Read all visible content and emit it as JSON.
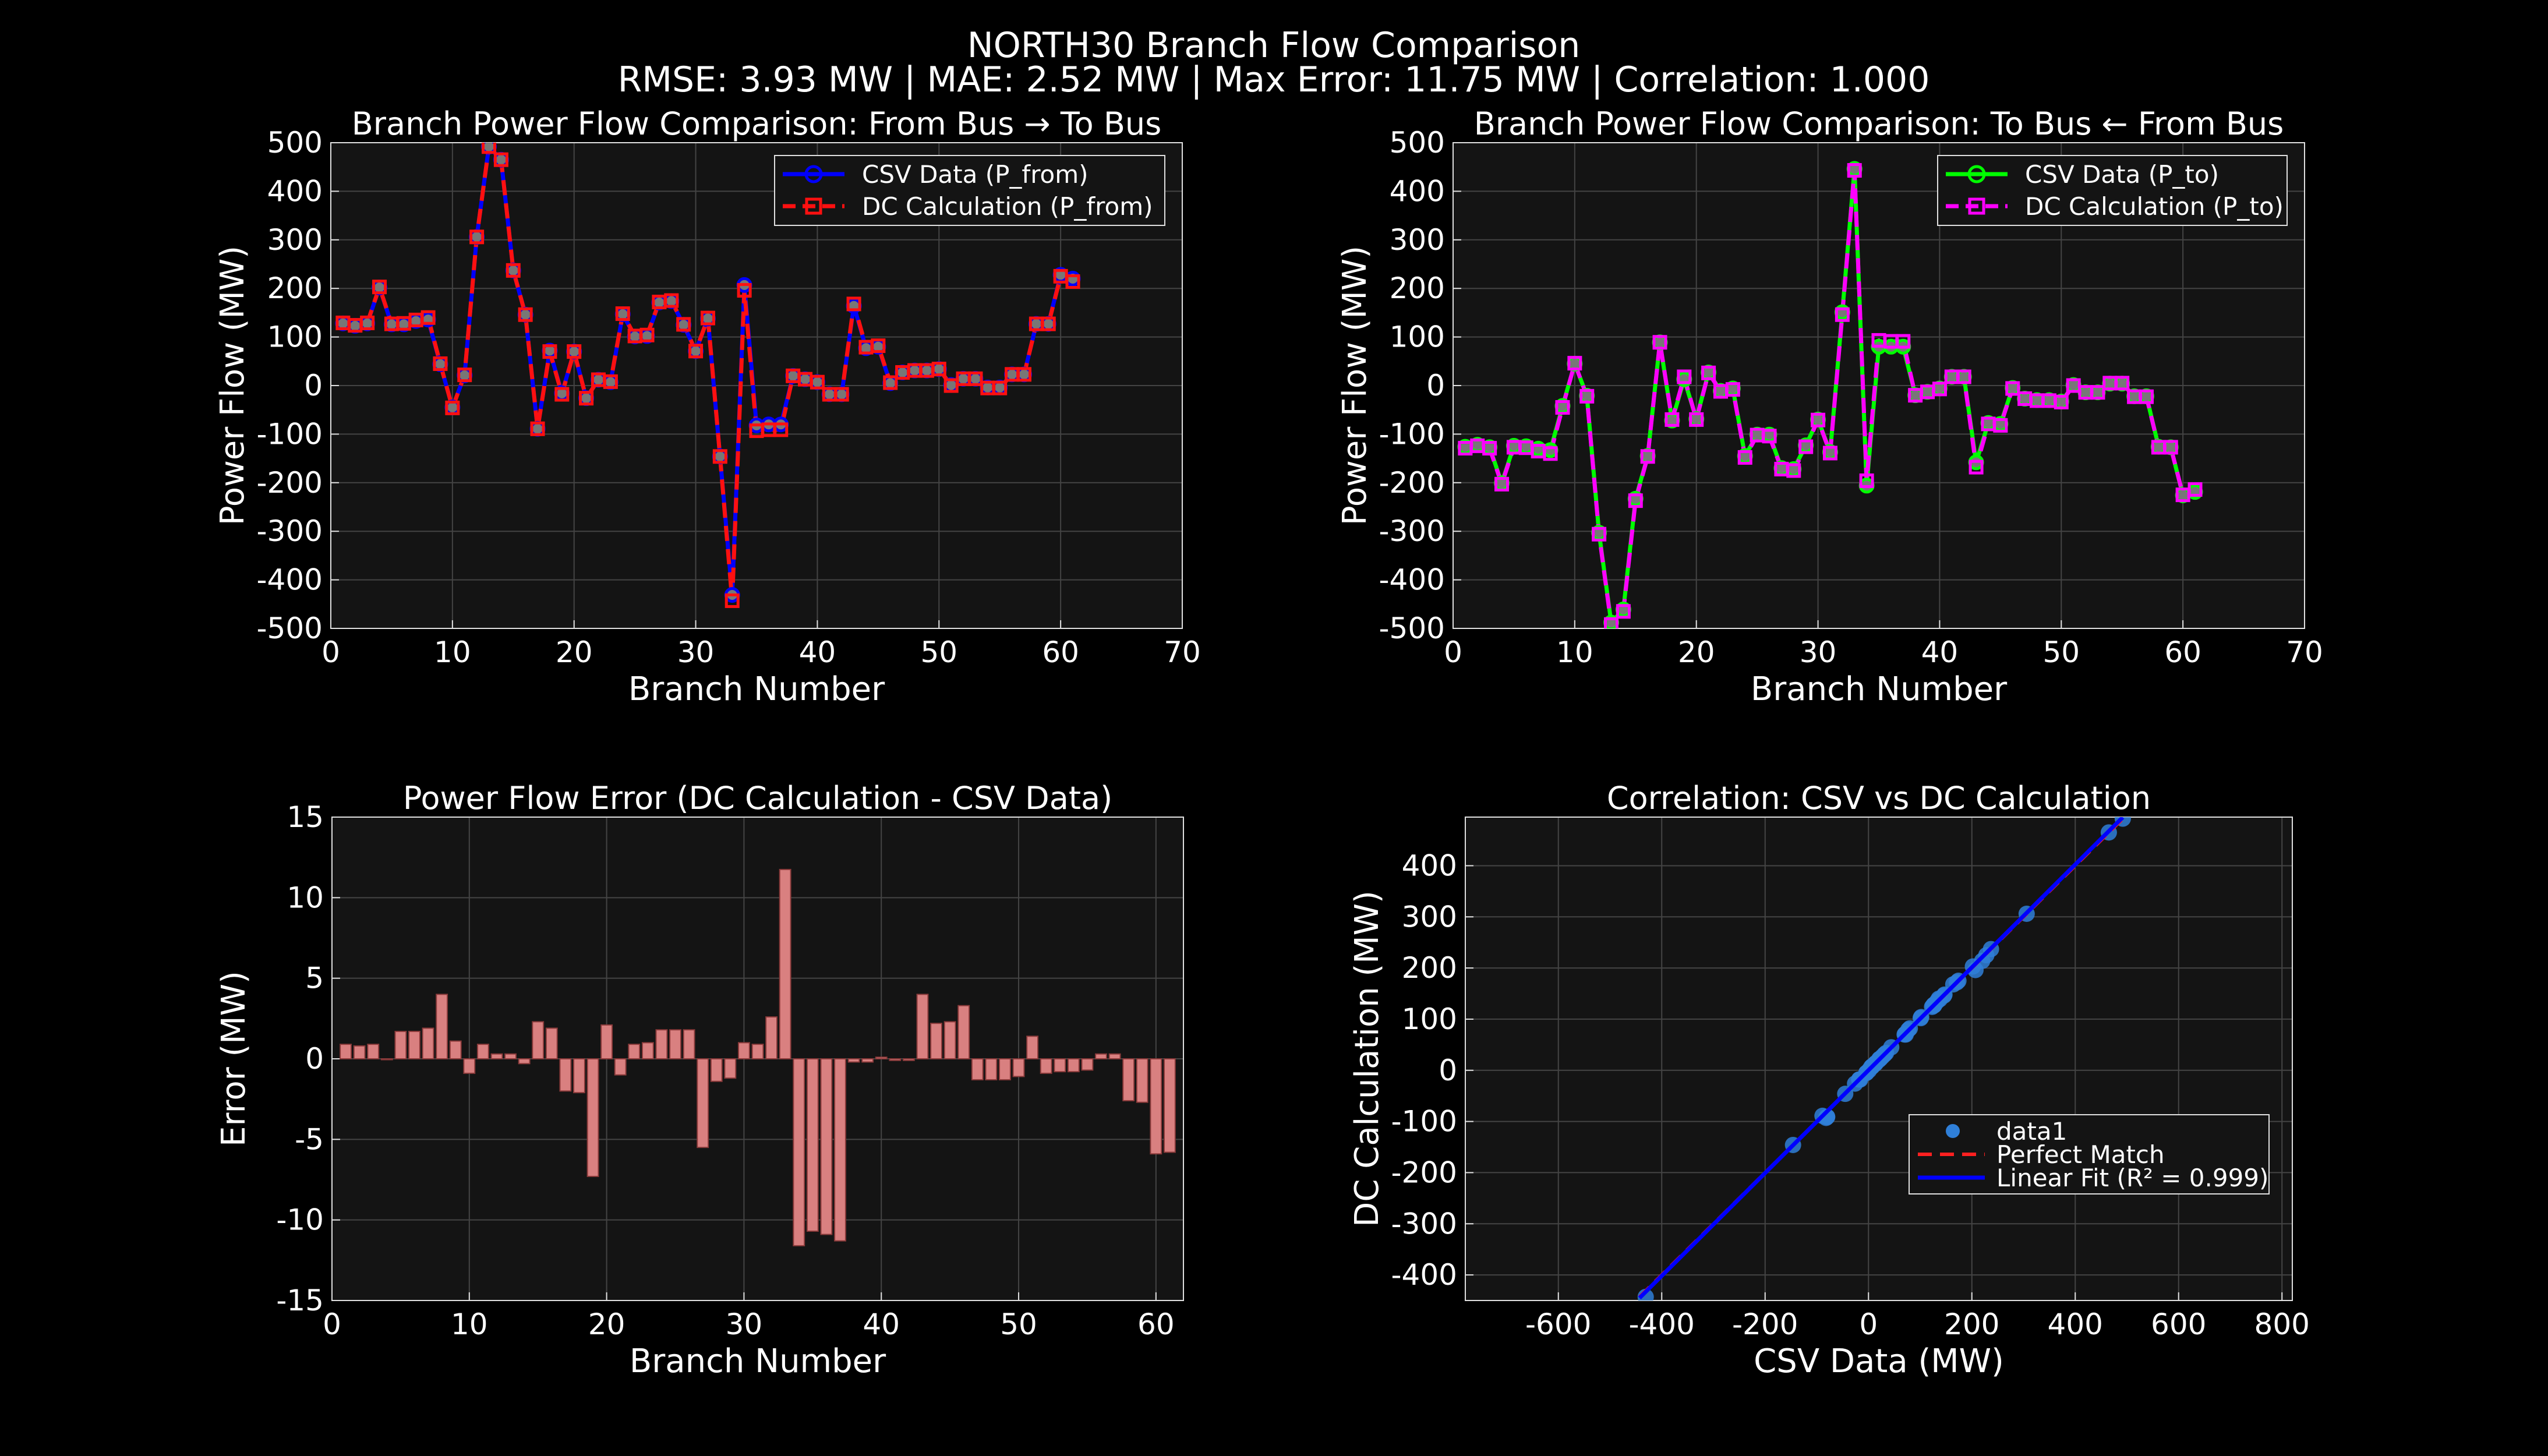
{
  "figure": {
    "title": "NORTH30 Branch Flow Comparison",
    "subtitle": "RMSE: 3.93 MW | MAE: 2.52 MW | Max Error: 11.75 MW | Correlation: 1.000"
  },
  "colors": {
    "background": "#000000",
    "axes_background": "#141414",
    "grid": "#444444",
    "csv_from": "#0000ff",
    "dc_from": "#ff1010",
    "csv_to": "#00ff00",
    "dc_to": "#ff00ff",
    "error_bar_fill": "#d98080",
    "error_bar_edge": "#8a3a3a",
    "scatter_point": "#2f7fd8",
    "linear_fit": "#0000ff",
    "perfect_match": "#ff2020"
  },
  "chart_data": [
    {
      "id": "from",
      "type": "line",
      "title": "Branch Power Flow Comparison: From Bus → To Bus",
      "xlabel": "Branch Number",
      "ylabel": "Power Flow (MW)",
      "xlim": [
        0,
        70
      ],
      "ylim": [
        -500,
        500
      ],
      "xticks": [
        0,
        10,
        20,
        30,
        40,
        50,
        60,
        70
      ],
      "yticks": [
        -500,
        -400,
        -300,
        -200,
        -100,
        0,
        100,
        200,
        300,
        400,
        500
      ],
      "grid": true,
      "legend_position": "top-right",
      "x": [
        1,
        2,
        3,
        4,
        5,
        6,
        7,
        8,
        9,
        10,
        11,
        12,
        13,
        14,
        15,
        16,
        17,
        18,
        19,
        20,
        21,
        22,
        23,
        24,
        25,
        26,
        27,
        28,
        29,
        30,
        31,
        32,
        33,
        34,
        35,
        36,
        37,
        38,
        39,
        40,
        41,
        42,
        43,
        44,
        45,
        46,
        47,
        48,
        49,
        50,
        51,
        52,
        53,
        54,
        55,
        56,
        57,
        58,
        59,
        60,
        61
      ],
      "series": [
        {
          "name": "CSV Data (P_from)",
          "color": "#0000ff",
          "marker": "circle",
          "dash": "solid",
          "values": [
            128,
            123,
            128,
            202,
            126,
            126,
            133,
            136,
            44,
            -45,
            21,
            306,
            492,
            465,
            237,
            146,
            -89,
            72,
            -16,
            70,
            -26,
            12,
            7,
            147,
            101,
            102,
            171,
            174,
            125,
            71,
            138,
            -146,
            -431,
            207,
            -82,
            -80,
            -80,
            20,
            13,
            7,
            -18,
            -18,
            164,
            77,
            80,
            5,
            27,
            31,
            31,
            34,
            1,
            14,
            14,
            -4,
            -4,
            23,
            23,
            127,
            127,
            228,
            220
          ]
        },
        {
          "name": "DC Calculation (P_from)",
          "color": "#ff1010",
          "marker": "square",
          "dash": "dashed",
          "values": [
            129,
            124,
            129,
            203,
            127,
            128,
            135,
            140,
            45,
            -46,
            22,
            306,
            492,
            465,
            237,
            146,
            -89,
            70,
            -18,
            70,
            -26,
            12,
            8,
            148,
            102,
            104,
            172,
            175,
            126,
            71,
            139,
            -146,
            -443,
            196,
            -93,
            -91,
            -91,
            20,
            13,
            7,
            -18,
            -18,
            168,
            79,
            82,
            6,
            27,
            31,
            31,
            34,
            0,
            14,
            14,
            -5,
            -5,
            23,
            23,
            127,
            127,
            225,
            214
          ]
        }
      ]
    },
    {
      "id": "to",
      "type": "line",
      "title": "Branch Power Flow Comparison: To Bus ← From Bus",
      "xlabel": "Branch Number",
      "ylabel": "Power Flow (MW)",
      "xlim": [
        0,
        70
      ],
      "ylim": [
        -500,
        500
      ],
      "xticks": [
        0,
        10,
        20,
        30,
        40,
        50,
        60,
        70
      ],
      "yticks": [
        -500,
        -400,
        -300,
        -200,
        -100,
        0,
        100,
        200,
        300,
        400,
        500
      ],
      "grid": true,
      "legend_position": "top-right",
      "x": [
        1,
        2,
        3,
        4,
        5,
        6,
        7,
        8,
        9,
        10,
        11,
        12,
        13,
        14,
        15,
        16,
        17,
        18,
        19,
        20,
        21,
        22,
        23,
        24,
        25,
        26,
        27,
        28,
        29,
        30,
        31,
        32,
        33,
        34,
        35,
        36,
        37,
        38,
        39,
        40,
        41,
        42,
        43,
        44,
        45,
        46,
        47,
        48,
        49,
        50,
        51,
        52,
        53,
        54,
        55,
        56,
        57,
        58,
        59,
        60,
        61
      ],
      "series": [
        {
          "name": "CSV Data (P_to)",
          "color": "#00ff00",
          "marker": "circle",
          "dash": "solid",
          "values": [
            -126,
            -122,
            -127,
            -201,
            -124,
            -125,
            -130,
            -133,
            -42,
            45,
            -21,
            -303,
            -488,
            -461,
            -233,
            -145,
            89,
            -72,
            13,
            -69,
            27,
            -11,
            -6,
            -145,
            -101,
            -101,
            -170,
            -172,
            -123,
            -70,
            -137,
            151,
            446,
            -206,
            80,
            80,
            80,
            -20,
            -13,
            -6,
            18,
            18,
            -158,
            -77,
            -79,
            -5,
            -27,
            -30,
            -30,
            -33,
            1,
            -14,
            -14,
            4,
            4,
            -22,
            -22,
            -126,
            -127,
            -226,
            -219
          ]
        },
        {
          "name": "DC Calculation (P_to)",
          "color": "#ff00ff",
          "marker": "square",
          "dash": "dashed",
          "values": [
            -129,
            -124,
            -129,
            -203,
            -127,
            -128,
            -135,
            -140,
            -45,
            46,
            -22,
            -306,
            -492,
            -465,
            -237,
            -146,
            89,
            -70,
            18,
            -70,
            26,
            -12,
            -8,
            -148,
            -102,
            -104,
            -172,
            -175,
            -126,
            -71,
            -139,
            146,
            443,
            -196,
            93,
            91,
            91,
            -20,
            -13,
            -7,
            18,
            18,
            -168,
            -79,
            -82,
            -6,
            -27,
            -31,
            -31,
            -34,
            0,
            -14,
            -14,
            5,
            5,
            -23,
            -23,
            -127,
            -127,
            -225,
            -214
          ]
        }
      ]
    },
    {
      "id": "error",
      "type": "bar",
      "title": "Power Flow Error (DC Calculation - CSV Data)",
      "xlabel": "Branch Number",
      "ylabel": "Error (MW)",
      "xlim": [
        0,
        62
      ],
      "ylim": [
        -15,
        15
      ],
      "xticks": [
        0,
        10,
        20,
        30,
        40,
        50,
        60
      ],
      "yticks": [
        -15,
        -10,
        -5,
        0,
        5,
        10,
        15
      ],
      "grid": true,
      "x": [
        1,
        2,
        3,
        4,
        5,
        6,
        7,
        8,
        9,
        10,
        11,
        12,
        13,
        14,
        15,
        16,
        17,
        18,
        19,
        20,
        21,
        22,
        23,
        24,
        25,
        26,
        27,
        28,
        29,
        30,
        31,
        32,
        33,
        34,
        35,
        36,
        37,
        38,
        39,
        40,
        41,
        42,
        43,
        44,
        45,
        46,
        47,
        48,
        49,
        50,
        51,
        52,
        53,
        54,
        55,
        56,
        57,
        58,
        59,
        60,
        61
      ],
      "values": [
        0.9,
        0.8,
        0.9,
        0.0,
        1.7,
        1.7,
        1.9,
        4.0,
        1.1,
        -0.9,
        0.9,
        0.3,
        0.3,
        -0.3,
        2.3,
        1.9,
        -2.0,
        -2.1,
        -7.3,
        2.1,
        -1.0,
        0.9,
        1.0,
        1.8,
        1.8,
        1.8,
        -5.5,
        -1.4,
        -1.2,
        1.0,
        0.9,
        2.6,
        11.75,
        -11.6,
        -10.7,
        -10.9,
        -11.3,
        -0.2,
        -0.2,
        0.1,
        -0.1,
        -0.1,
        4.0,
        2.2,
        2.3,
        3.3,
        -1.3,
        -1.3,
        -1.3,
        -1.1,
        1.4,
        -0.9,
        -0.8,
        -0.8,
        -0.7,
        0.3,
        0.3,
        -2.6,
        -2.7,
        -5.9,
        -5.8
      ]
    },
    {
      "id": "correlation",
      "type": "scatter",
      "title": "Correlation: CSV vs DC Calculation",
      "xlabel": "CSV Data (MW)",
      "ylabel": "DC Calculation (MW)",
      "xlim": [
        -780,
        820
      ],
      "ylim": [
        -450,
        495
      ],
      "xticks": [
        -600,
        -400,
        -200,
        0,
        200,
        400,
        600,
        800
      ],
      "yticks": [
        -400,
        -300,
        -200,
        -100,
        0,
        100,
        200,
        300,
        400
      ],
      "grid": true,
      "legend_position": "bottom-right",
      "legend": [
        "data1",
        "Perfect Match",
        "Linear Fit (R² = 0.999)"
      ],
      "x": [
        128,
        123,
        128,
        202,
        126,
        126,
        133,
        136,
        44,
        -45,
        21,
        306,
        492,
        465,
        237,
        146,
        -89,
        72,
        -16,
        70,
        -26,
        12,
        7,
        147,
        101,
        102,
        171,
        174,
        125,
        71,
        138,
        -146,
        -431,
        207,
        -82,
        -80,
        -80,
        20,
        13,
        7,
        -18,
        -18,
        164,
        77,
        80,
        5,
        27,
        31,
        31,
        34,
        1,
        14,
        14,
        -4,
        -4,
        23,
        23,
        127,
        127,
        228,
        220
      ],
      "y": [
        129,
        124,
        129,
        203,
        127,
        128,
        135,
        140,
        45,
        -46,
        22,
        306,
        492,
        465,
        237,
        146,
        -89,
        70,
        -18,
        70,
        -26,
        12,
        8,
        148,
        102,
        104,
        172,
        175,
        126,
        71,
        139,
        -146,
        -443,
        196,
        -93,
        -91,
        -91,
        20,
        13,
        7,
        -18,
        -18,
        168,
        79,
        82,
        6,
        27,
        31,
        31,
        34,
        0,
        14,
        14,
        -5,
        -5,
        23,
        23,
        127,
        127,
        225,
        214
      ],
      "linear_fit": {
        "slope": 1.005,
        "intercept": 0.2,
        "x_range": [
          -443,
          492
        ]
      }
    }
  ]
}
